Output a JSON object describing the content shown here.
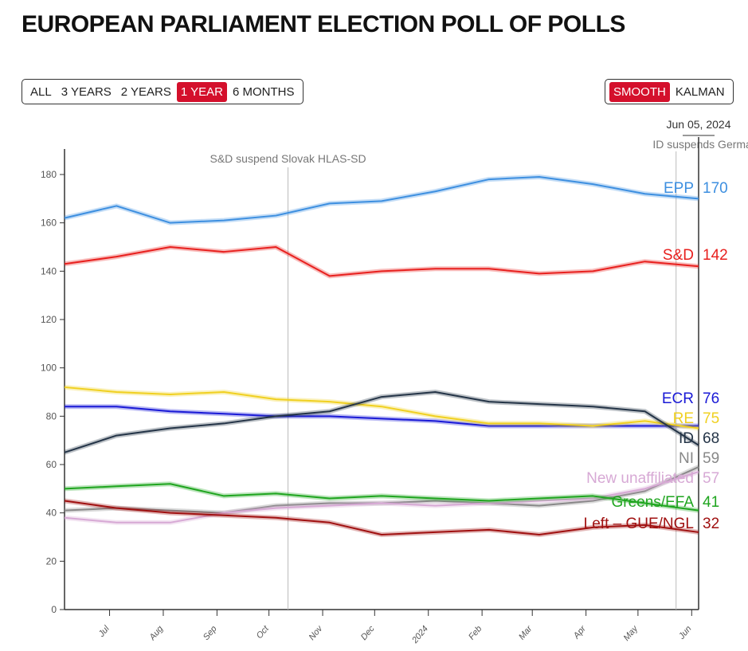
{
  "title": "EUROPEAN PARLIAMENT ELECTION POLL OF POLLS",
  "range_buttons": [
    {
      "label": "ALL",
      "active": false
    },
    {
      "label": "3 YEARS",
      "active": false
    },
    {
      "label": "2 YEARS",
      "active": false
    },
    {
      "label": "1 YEAR",
      "active": true
    },
    {
      "label": "6 MONTHS",
      "active": false
    }
  ],
  "method_buttons": [
    {
      "label": "SMOOTH",
      "active": true
    },
    {
      "label": "KALMAN",
      "active": false
    }
  ],
  "chart_data": {
    "type": "line",
    "ylim": [
      0,
      190
    ],
    "yticks": [
      0,
      20,
      40,
      60,
      80,
      100,
      120,
      140,
      160,
      180
    ],
    "x": [
      "2023-06-05",
      "2023-07-05",
      "2023-08-05",
      "2023-09-05",
      "2023-10-05",
      "2023-11-05",
      "2023-12-05",
      "2024-01-05",
      "2024-02-05",
      "2024-03-05",
      "2024-04-05",
      "2024-05-05",
      "2024-06-05"
    ],
    "xticks": [
      {
        "date": "2023-07-01",
        "label": "Jul"
      },
      {
        "date": "2023-08-01",
        "label": "Aug"
      },
      {
        "date": "2023-09-01",
        "label": "Sep"
      },
      {
        "date": "2023-10-01",
        "label": "Oct"
      },
      {
        "date": "2023-11-01",
        "label": "Nov"
      },
      {
        "date": "2023-12-01",
        "label": "Dec"
      },
      {
        "date": "2024-01-01",
        "label": "2024"
      },
      {
        "date": "2024-02-01",
        "label": "Feb"
      },
      {
        "date": "2024-03-01",
        "label": "Mar"
      },
      {
        "date": "2024-04-01",
        "label": "Apr"
      },
      {
        "date": "2024-05-01",
        "label": "May"
      },
      {
        "date": "2024-06-01",
        "label": "Jun"
      }
    ],
    "xlim": [
      "2023-06-05",
      "2024-06-05"
    ],
    "current_date_label": "Jun 05, 2024",
    "annotations": [
      {
        "date": "2023-10-12",
        "label": "S&D suspend Slovak HLAS-SD"
      },
      {
        "date": "2024-05-23",
        "label": "ID suspends German AfD"
      }
    ],
    "series": [
      {
        "name": "EPP",
        "final": "170",
        "color": "#3d8fe0",
        "values": [
          162,
          167,
          160,
          161,
          163,
          168,
          169,
          173,
          178,
          179,
          176,
          172,
          170
        ]
      },
      {
        "name": "S&D",
        "final": "142",
        "color": "#e8201e",
        "values": [
          143,
          146,
          150,
          148,
          150,
          138,
          140,
          141,
          141,
          139,
          140,
          144,
          142
        ]
      },
      {
        "name": "ECR",
        "final": "76",
        "color": "#1a1ad6",
        "values": [
          84,
          84,
          82,
          81,
          80,
          80,
          79,
          78,
          76,
          76,
          76,
          76,
          76
        ]
      },
      {
        "name": "RE",
        "final": "75",
        "color": "#f0d020",
        "values": [
          92,
          90,
          89,
          90,
          87,
          86,
          84,
          80,
          77,
          77,
          76,
          78,
          75
        ]
      },
      {
        "name": "ID",
        "final": "68",
        "color": "#243447",
        "values": [
          65,
          72,
          75,
          77,
          80,
          82,
          88,
          90,
          86,
          85,
          84,
          82,
          68
        ]
      },
      {
        "name": "NI",
        "final": "59",
        "color": "#888888",
        "values": [
          41,
          42,
          41,
          40,
          43,
          44,
          44,
          45,
          44,
          43,
          45,
          49,
          59
        ]
      },
      {
        "name": "New unaffiliated",
        "final": "57",
        "color": "#d7a9d5",
        "values": [
          38,
          36,
          36,
          40,
          42,
          43,
          44,
          43,
          44,
          45,
          46,
          50,
          57
        ]
      },
      {
        "name": "Greens/EFA",
        "final": "41",
        "color": "#1fa51f",
        "values": [
          50,
          51,
          52,
          47,
          48,
          46,
          47,
          46,
          45,
          46,
          47,
          44,
          41
        ]
      },
      {
        "name": "Left – GUE/NGL",
        "final": "32",
        "color": "#a01010",
        "values": [
          45,
          42,
          40,
          39,
          38,
          36,
          31,
          32,
          33,
          31,
          34,
          35,
          32
        ]
      }
    ]
  }
}
